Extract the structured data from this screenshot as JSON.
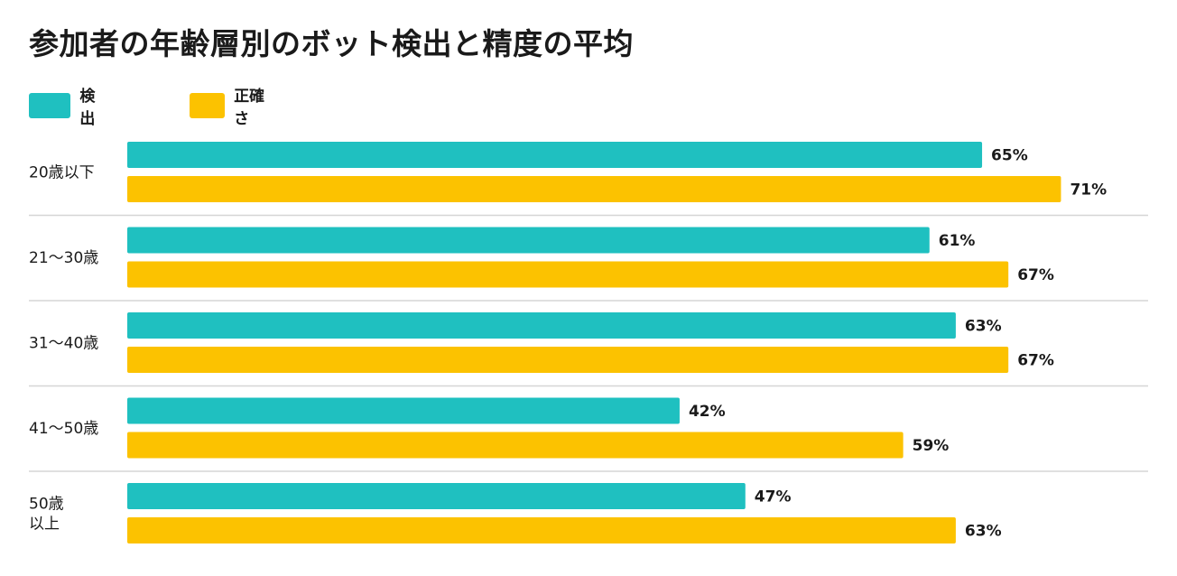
{
  "title": "参加者の年齢層別のボット検出と精度の平均",
  "legend": [
    {
      "label": "検出",
      "color": "#1fc0c0"
    },
    {
      "label": "正確さ",
      "color": "#fcc200"
    }
  ],
  "chart_data": {
    "type": "bar",
    "orientation": "horizontal",
    "title": "参加者の年齢層別のボット検出と精度の平均",
    "categories": [
      [
        "20歳以下"
      ],
      [
        "21〜30歳"
      ],
      [
        "31〜40歳"
      ],
      [
        "41〜50歳"
      ],
      [
        "50歳",
        "以上"
      ]
    ],
    "series": [
      {
        "name": "検出",
        "color": "#1fc0c0",
        "values": [
          65,
          61,
          63,
          42,
          47
        ]
      },
      {
        "name": "正確さ",
        "color": "#fcc200",
        "values": [
          71,
          67,
          67,
          59,
          63
        ]
      }
    ],
    "value_suffix": "%",
    "xlim": [
      0,
      100
    ],
    "grid": false,
    "legend_position": "top-left",
    "separators": true
  }
}
